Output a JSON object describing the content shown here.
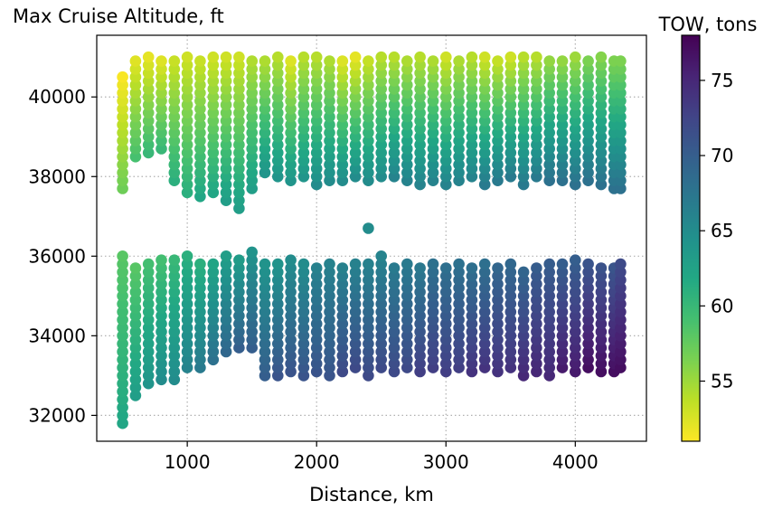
{
  "chart_data": {
    "type": "scatter",
    "title": "Max Cruise Altitude, ft",
    "xlabel": "Distance, km",
    "ylabel": "",
    "xlim": [
      300,
      4550
    ],
    "ylim": [
      31350,
      41550
    ],
    "x_ticks": [
      1000,
      2000,
      3000,
      4000
    ],
    "y_ticks": [
      32000,
      34000,
      36000,
      38000,
      40000
    ],
    "grid": true,
    "grid_style": "dotted",
    "colorbar": {
      "label": "TOW, tons",
      "range": [
        51,
        78
      ],
      "ticks": [
        55,
        60,
        65,
        70,
        75
      ],
      "colormap": "viridis",
      "position": "right"
    },
    "marker_color_encodes": "TOW, tons",
    "upper_cluster": {
      "distances_km": [
        500,
        600,
        700,
        800,
        900,
        1000,
        1100,
        1200,
        1300,
        1400,
        1500,
        1600,
        1700,
        1800,
        1900,
        2000,
        2100,
        2200,
        2300,
        2400,
        2500,
        2600,
        2700,
        2800,
        2900,
        3000,
        3100,
        3200,
        3300,
        3400,
        3500,
        3600,
        3700,
        3800,
        3900,
        4000,
        4100,
        4200,
        4300,
        4350
      ],
      "bottom_altitude_ft": [
        37700,
        38500,
        38600,
        38700,
        37900,
        37600,
        37500,
        37600,
        37400,
        37200,
        37700,
        38100,
        38000,
        37900,
        38000,
        37800,
        37900,
        37900,
        38000,
        37900,
        38000,
        38000,
        37900,
        37800,
        37900,
        37800,
        37900,
        38000,
        37800,
        37900,
        38000,
        37800,
        38000,
        37900,
        37900,
        37800,
        37900,
        37800,
        37700,
        37700
      ],
      "top_altitude_ft": [
        40600,
        41000,
        41000,
        41000,
        41000,
        41000,
        41000,
        41000,
        41000,
        41000,
        41000,
        41000,
        41000,
        41000,
        41000,
        41000,
        41000,
        41000,
        41000,
        41000,
        41000,
        41000,
        41000,
        41000,
        41000,
        41000,
        41000,
        41000,
        41000,
        41000,
        41000,
        41000,
        41000,
        41000,
        41000,
        41000,
        41000,
        41000,
        41000,
        41000
      ],
      "tow_tons_at_bottom": [
        57,
        59,
        60,
        60,
        61,
        61,
        62,
        62,
        63,
        63,
        63,
        64,
        64,
        64,
        64,
        65,
        65,
        65,
        65,
        65,
        65,
        66,
        66,
        66,
        66,
        66,
        66,
        66,
        67,
        67,
        67,
        67,
        67,
        68,
        68,
        68,
        68,
        68,
        68,
        68
      ],
      "tow_tons_at_top": [
        51,
        52,
        52,
        52,
        53,
        53,
        53,
        53,
        53,
        53,
        54,
        54,
        54,
        52,
        54,
        54,
        54,
        52,
        52,
        53,
        54,
        54,
        54,
        54,
        54,
        53,
        54,
        54,
        53,
        53,
        53,
        54,
        54,
        55,
        55,
        55,
        56,
        56,
        56,
        56
      ]
    },
    "lower_cluster": {
      "distances_km": [
        500,
        600,
        700,
        800,
        900,
        1000,
        1100,
        1200,
        1300,
        1400,
        1500,
        1600,
        1700,
        1800,
        1900,
        2000,
        2100,
        2200,
        2300,
        2400,
        2500,
        2600,
        2700,
        2800,
        2900,
        3000,
        3100,
        3200,
        3300,
        3400,
        3500,
        3600,
        3700,
        3800,
        3900,
        4000,
        4100,
        4200,
        4300,
        4350
      ],
      "bottom_altitude_ft": [
        31800,
        32500,
        32800,
        32900,
        32900,
        33200,
        33200,
        33400,
        33600,
        33700,
        33700,
        33000,
        33000,
        33100,
        33000,
        33100,
        33000,
        33100,
        33200,
        33000,
        33200,
        33100,
        33200,
        33100,
        33200,
        33100,
        33200,
        33100,
        33200,
        33100,
        33200,
        33000,
        33100,
        33000,
        33200,
        33100,
        33200,
        33100,
        33100,
        33200
      ],
      "top_altitude_ft": [
        36100,
        35800,
        35900,
        36000,
        35900,
        36000,
        35800,
        35900,
        36000,
        36000,
        36200,
        35900,
        35900,
        35900,
        35800,
        35800,
        35900,
        35800,
        35900,
        35900,
        36000,
        35700,
        35800,
        35800,
        35800,
        35800,
        35800,
        35800,
        35900,
        35800,
        35800,
        35700,
        35800,
        35900,
        35800,
        35900,
        35800,
        35800,
        35700,
        35800
      ],
      "tow_tons_at_bottom": [
        62,
        63,
        64,
        65,
        65,
        66,
        67,
        68,
        69,
        70,
        70,
        70,
        71,
        71,
        71,
        71,
        71,
        72,
        72,
        72,
        72,
        72,
        72,
        73,
        73,
        73,
        73,
        74,
        74,
        74,
        74,
        75,
        75,
        75,
        76,
        76,
        77,
        77,
        77,
        77
      ],
      "tow_tons_at_top": [
        58,
        58,
        59,
        59,
        60,
        61,
        61,
        62,
        63,
        63,
        64,
        64,
        64,
        65,
        65,
        66,
        66,
        66,
        66,
        66,
        66,
        67,
        67,
        67,
        68,
        68,
        68,
        68,
        68,
        69,
        69,
        69,
        70,
        70,
        70,
        70,
        71,
        71,
        71,
        72
      ]
    },
    "altitude_step_ft": 200,
    "outliers": [
      {
        "distance_km": 2400,
        "altitude_ft": 36700,
        "tow_tons": 65
      }
    ]
  }
}
